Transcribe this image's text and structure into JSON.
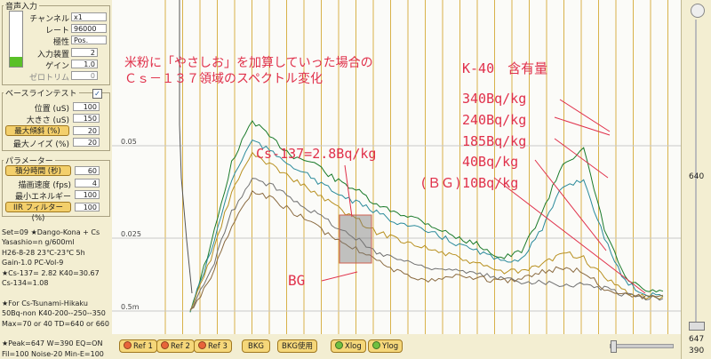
{
  "audio": {
    "title": "音声入力",
    "channel_label": "チャンネル",
    "channel": "x1",
    "rate_label": "レート",
    "rate": "96000",
    "polarity_label": "極性",
    "polarity": "Pos.",
    "input_label": "入力装置",
    "input": "2",
    "gain_label": "ゲイン",
    "gain": "1.0",
    "zero_label": "ゼロトリム",
    "zero": "0"
  },
  "baseline": {
    "title": "ベースラインテスト",
    "pos_label": "位置 (uS)",
    "pos": "100",
    "size_label": "大きさ (uS)",
    "size": "150",
    "slope_btn": "最大傾斜 (%)",
    "slope": "20",
    "noise_label": "最大ノイズ (%)",
    "noise": "20"
  },
  "params": {
    "title": "パラメーター",
    "integ_btn": "積分時間 (秒)",
    "integ": "60",
    "draw_label": "描画速度 (fps)",
    "draw": "4",
    "minE_label": "最小エネルギー",
    "minE": "100",
    "iir_btn": "IIR フィルター (%)",
    "iir": "100"
  },
  "notes": [
    "Set=09 ★Dango-Kona + Cs",
    "Yasashio=n g/600ml",
    "H26-8-28 23℃-23℃ 5h",
    "Gain-1.0 PC-Vol-9",
    "★Cs-137= 2.82  K40=30.67",
    "Cs-134=1.08",
    "",
    "★For Cs-Tsunami-Hikaku",
    "50Bq-non K40-200--250--350",
    "Max=70 or 40 TD=640 or 660",
    "",
    "★Peak=647 W=390 EQ=ON",
    "Fil=100 Noise-20 Min-E=100"
  ],
  "chart_data": {
    "type": "line",
    "yticks": [
      "0.05",
      "0.025",
      "0.5m"
    ],
    "annotations": {
      "title_line1": "米粉に「やさしお」を加算していった場合の",
      "title_line2": "Ｃｓ－１３７領域のスペクトル変化",
      "k40": "K-40　含有量",
      "cs137": "Cs-137=2.8Bq/kg",
      "bg": "BG",
      "levels": [
        "340Bq/kg",
        "240Bq/kg",
        "185Bq/kg",
        "40Bq/kg",
        "(ＢＧ)10Bq/kg"
      ]
    },
    "series": [
      {
        "color": "#1a7a2a",
        "values": [
          0.0,
          0.02,
          0.045,
          0.058,
          0.052,
          0.047,
          0.045,
          0.04,
          0.037,
          0.032,
          0.03,
          0.028,
          0.025,
          0.022,
          0.02,
          0.016,
          0.018,
          0.03,
          0.045,
          0.049,
          0.025,
          0.01,
          0.006
        ]
      },
      {
        "color": "#2a8a9a",
        "values": [
          0.0,
          0.018,
          0.04,
          0.052,
          0.048,
          0.044,
          0.04,
          0.036,
          0.033,
          0.03,
          0.027,
          0.025,
          0.023,
          0.02,
          0.018,
          0.015,
          0.016,
          0.025,
          0.038,
          0.04,
          0.022,
          0.009,
          0.005
        ]
      },
      {
        "color": "#b89020",
        "values": [
          0.0,
          0.016,
          0.036,
          0.048,
          0.044,
          0.04,
          0.036,
          0.032,
          0.028,
          0.024,
          0.022,
          0.02,
          0.018,
          0.016,
          0.014,
          0.012,
          0.012,
          0.014,
          0.018,
          0.016,
          0.01,
          0.006,
          0.004
        ]
      },
      {
        "color": "#707070",
        "values": [
          0.0,
          0.012,
          0.03,
          0.04,
          0.038,
          0.034,
          0.03,
          0.026,
          0.022,
          0.018,
          0.016,
          0.014,
          0.013,
          0.012,
          0.011,
          0.01,
          0.009,
          0.009,
          0.008,
          0.008,
          0.007,
          0.005,
          0.004
        ]
      },
      {
        "color": "#8a6a40",
        "values": [
          0.0,
          0.01,
          0.026,
          0.036,
          0.034,
          0.03,
          0.026,
          0.022,
          0.019,
          0.016,
          0.012,
          0.009,
          0.01,
          0.011,
          0.01,
          0.009,
          0.01,
          0.012,
          0.013,
          0.012,
          0.007,
          0.005,
          0.004
        ]
      }
    ]
  },
  "bottom": {
    "ref1": "Ref 1",
    "ref2": "Ref 2",
    "ref3": "Ref 3",
    "bkg": "BKG",
    "bkg_use": "BKG使用",
    "xlog": "Xlog",
    "ylog": "Ylog"
  },
  "right": {
    "top_val": "640",
    "val1": "647",
    "val2": "390"
  }
}
